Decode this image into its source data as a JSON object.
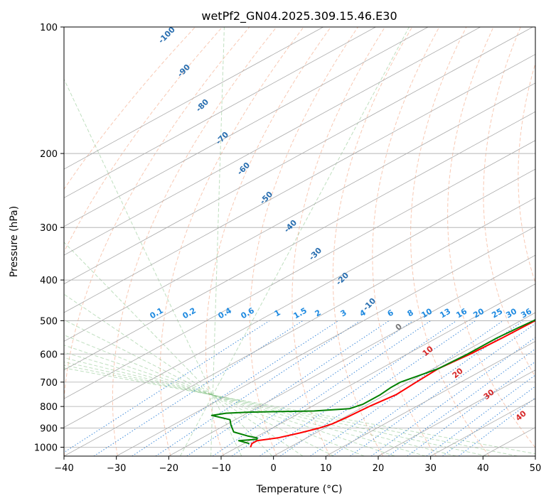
{
  "chart_data": {
    "type": "line",
    "subtype": "skew-t log-p sounding",
    "title": "wetPf2_GN04.2025.309.15.46.E30",
    "xlabel": "Temperature (°C)",
    "ylabel": "Pressure (hPa)",
    "xlim": [
      -40,
      50
    ],
    "ylim": [
      1050,
      100
    ],
    "x_ticks": [
      -40,
      -30,
      -20,
      -10,
      0,
      10,
      20,
      30,
      40,
      50
    ],
    "x_tick_labels": [
      "−40",
      "−30",
      "−20",
      "−10",
      "0",
      "10",
      "20",
      "30",
      "40",
      "50"
    ],
    "y_ticks": [
      1000,
      900,
      800,
      700,
      600,
      500,
      400,
      300,
      200,
      100
    ],
    "y_tick_labels": [
      "1000",
      "900",
      "800",
      "700",
      "600",
      "500",
      "400",
      "300",
      "200",
      "100"
    ],
    "grid": true,
    "series": [
      {
        "name": "Temperature",
        "color": "#ff0000",
        "points": [
          [
            -7.5,
            1000
          ],
          [
            -8.5,
            980
          ],
          [
            -8.5,
            965
          ],
          [
            -5.5,
            950
          ],
          [
            -3,
            925
          ],
          [
            -1,
            900
          ],
          [
            0,
            880
          ],
          [
            0.5,
            850
          ],
          [
            1,
            800
          ],
          [
            2,
            750
          ],
          [
            1.5,
            700
          ],
          [
            1,
            650
          ],
          [
            2,
            600
          ],
          [
            2.5,
            550
          ],
          [
            2.8,
            500
          ],
          [
            2.5,
            470
          ],
          [
            2.8,
            450
          ],
          [
            2.2,
            420
          ],
          [
            1.5,
            400
          ],
          [
            0,
            370
          ],
          [
            -1.5,
            340
          ],
          [
            -3,
            310
          ],
          [
            -4,
            300
          ],
          [
            -5,
            280
          ],
          [
            -3.5,
            260
          ],
          [
            -3,
            240
          ],
          [
            -0.5,
            220
          ],
          [
            4.5,
            205
          ],
          [
            8.5,
            200
          ],
          [
            10,
            190
          ],
          [
            12,
            180
          ],
          [
            15,
            170
          ],
          [
            19,
            160
          ],
          [
            24,
            148
          ],
          [
            30,
            135
          ],
          [
            37,
            120
          ],
          [
            42,
            110
          ],
          [
            48,
            100
          ]
        ]
      },
      {
        "name": "Dewpoint",
        "color": "#008000",
        "points": [
          [
            -9,
            980
          ],
          [
            -12,
            965
          ],
          [
            -9,
            958
          ],
          [
            -9.5,
            950
          ],
          [
            -12,
            940
          ],
          [
            -16,
            920
          ],
          [
            -19,
            885
          ],
          [
            -21,
            860
          ],
          [
            -26,
            840
          ],
          [
            -24,
            830
          ],
          [
            -20,
            825
          ],
          [
            -8,
            820
          ],
          [
            -2,
            810
          ],
          [
            -1,
            790
          ],
          [
            -1,
            750
          ],
          [
            -1.5,
            720
          ],
          [
            -1.5,
            700
          ],
          [
            0,
            670
          ],
          [
            1,
            650
          ],
          [
            1.5,
            600
          ],
          [
            1.5,
            550
          ],
          [
            2,
            520
          ],
          [
            2.5,
            500
          ],
          [
            2.2,
            450
          ],
          [
            1.5,
            430
          ],
          [
            1.5,
            400
          ],
          [
            0,
            370
          ],
          [
            -1,
            340
          ],
          [
            -2,
            320
          ],
          [
            -4,
            300
          ],
          [
            -5,
            280
          ],
          [
            -12,
            260
          ],
          [
            -16,
            245
          ],
          [
            -16,
            235
          ],
          [
            -14,
            220
          ],
          [
            -17,
            212
          ],
          [
            -21,
            208
          ],
          [
            -21,
            203
          ],
          [
            -19,
            195
          ],
          [
            -16,
            185
          ],
          [
            -13,
            175
          ],
          [
            -10,
            160
          ],
          [
            -11,
            150
          ],
          [
            -10,
            140
          ],
          [
            -6,
            125
          ],
          [
            -2,
            115
          ],
          [
            0,
            108
          ],
          [
            1,
            100
          ]
        ]
      }
    ],
    "dry_adiabat_labels_C": [
      "-100",
      "-90",
      "-80",
      "-70",
      "-60",
      "-50",
      "-40",
      "-30",
      "-20",
      "-10"
    ],
    "mixing_ratio_labels_gkg": [
      "0.1",
      "0.2",
      "0.4",
      "0.6",
      "1",
      "1.5",
      "2",
      "3",
      "4",
      "6",
      "8",
      "10",
      "13",
      "16",
      "20",
      "25",
      "30",
      "36"
    ],
    "moist_adiabat_labels_C": [
      "0",
      "10",
      "20",
      "30",
      "40"
    ]
  }
}
